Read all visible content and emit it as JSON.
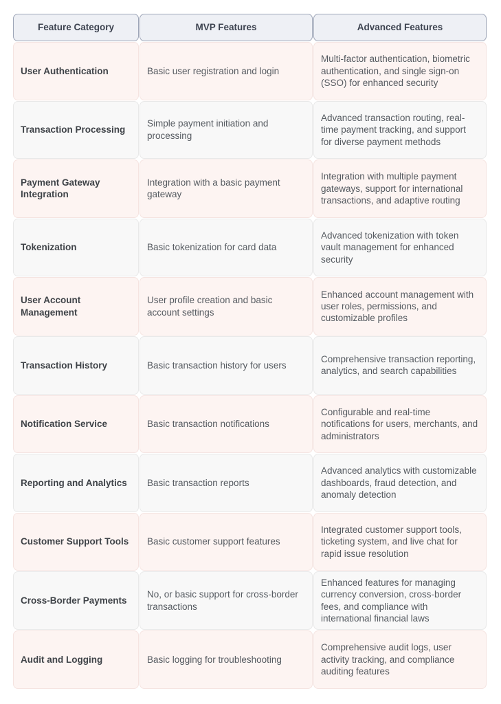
{
  "table": {
    "headers": [
      "Feature Category",
      "MVP Features",
      "Advanced Features"
    ],
    "rows": [
      [
        "User Authentication",
        "Basic user registration and login",
        "Multi-factor authentication, biometric authentication, and single sign-on (SSO) for enhanced security"
      ],
      [
        "Transaction Processing",
        "Simple payment initiation and processing",
        "Advanced transaction routing, real-time payment tracking, and support for diverse payment methods"
      ],
      [
        "Payment Gateway Integration",
        "Integration with a basic payment gateway",
        "Integration with multiple payment gateways, support for international transactions, and adaptive routing"
      ],
      [
        "Tokenization",
        "Basic tokenization for card data",
        "Advanced tokenization with token vault management for enhanced security"
      ],
      [
        "User Account Management",
        "User profile creation and basic account settings",
        "Enhanced account management with user roles, permissions, and customizable profiles"
      ],
      [
        "Transaction History",
        "Basic transaction history for users",
        "Comprehensive transaction reporting, analytics, and search capabilities"
      ],
      [
        "Notification Service",
        "Basic transaction notifications",
        "Configurable and real-time notifications for users, merchants, and administrators"
      ],
      [
        "Reporting and Analytics",
        "Basic transaction reports",
        "Advanced analytics with customizable dashboards, fraud detection, and anomaly detection"
      ],
      [
        "Customer Support Tools",
        "Basic customer support features",
        "Integrated customer support tools, ticketing system, and live chat for rapid issue resolution"
      ],
      [
        "Cross-Border Payments",
        "No, or basic support for cross-border transactions",
        "Enhanced features for managing currency conversion, cross-border fees, and compliance with international financial laws"
      ],
      [
        "Audit and Logging",
        "Basic logging for troubleshooting",
        "Comprehensive audit logs, user activity tracking, and compliance auditing features"
      ]
    ]
  }
}
